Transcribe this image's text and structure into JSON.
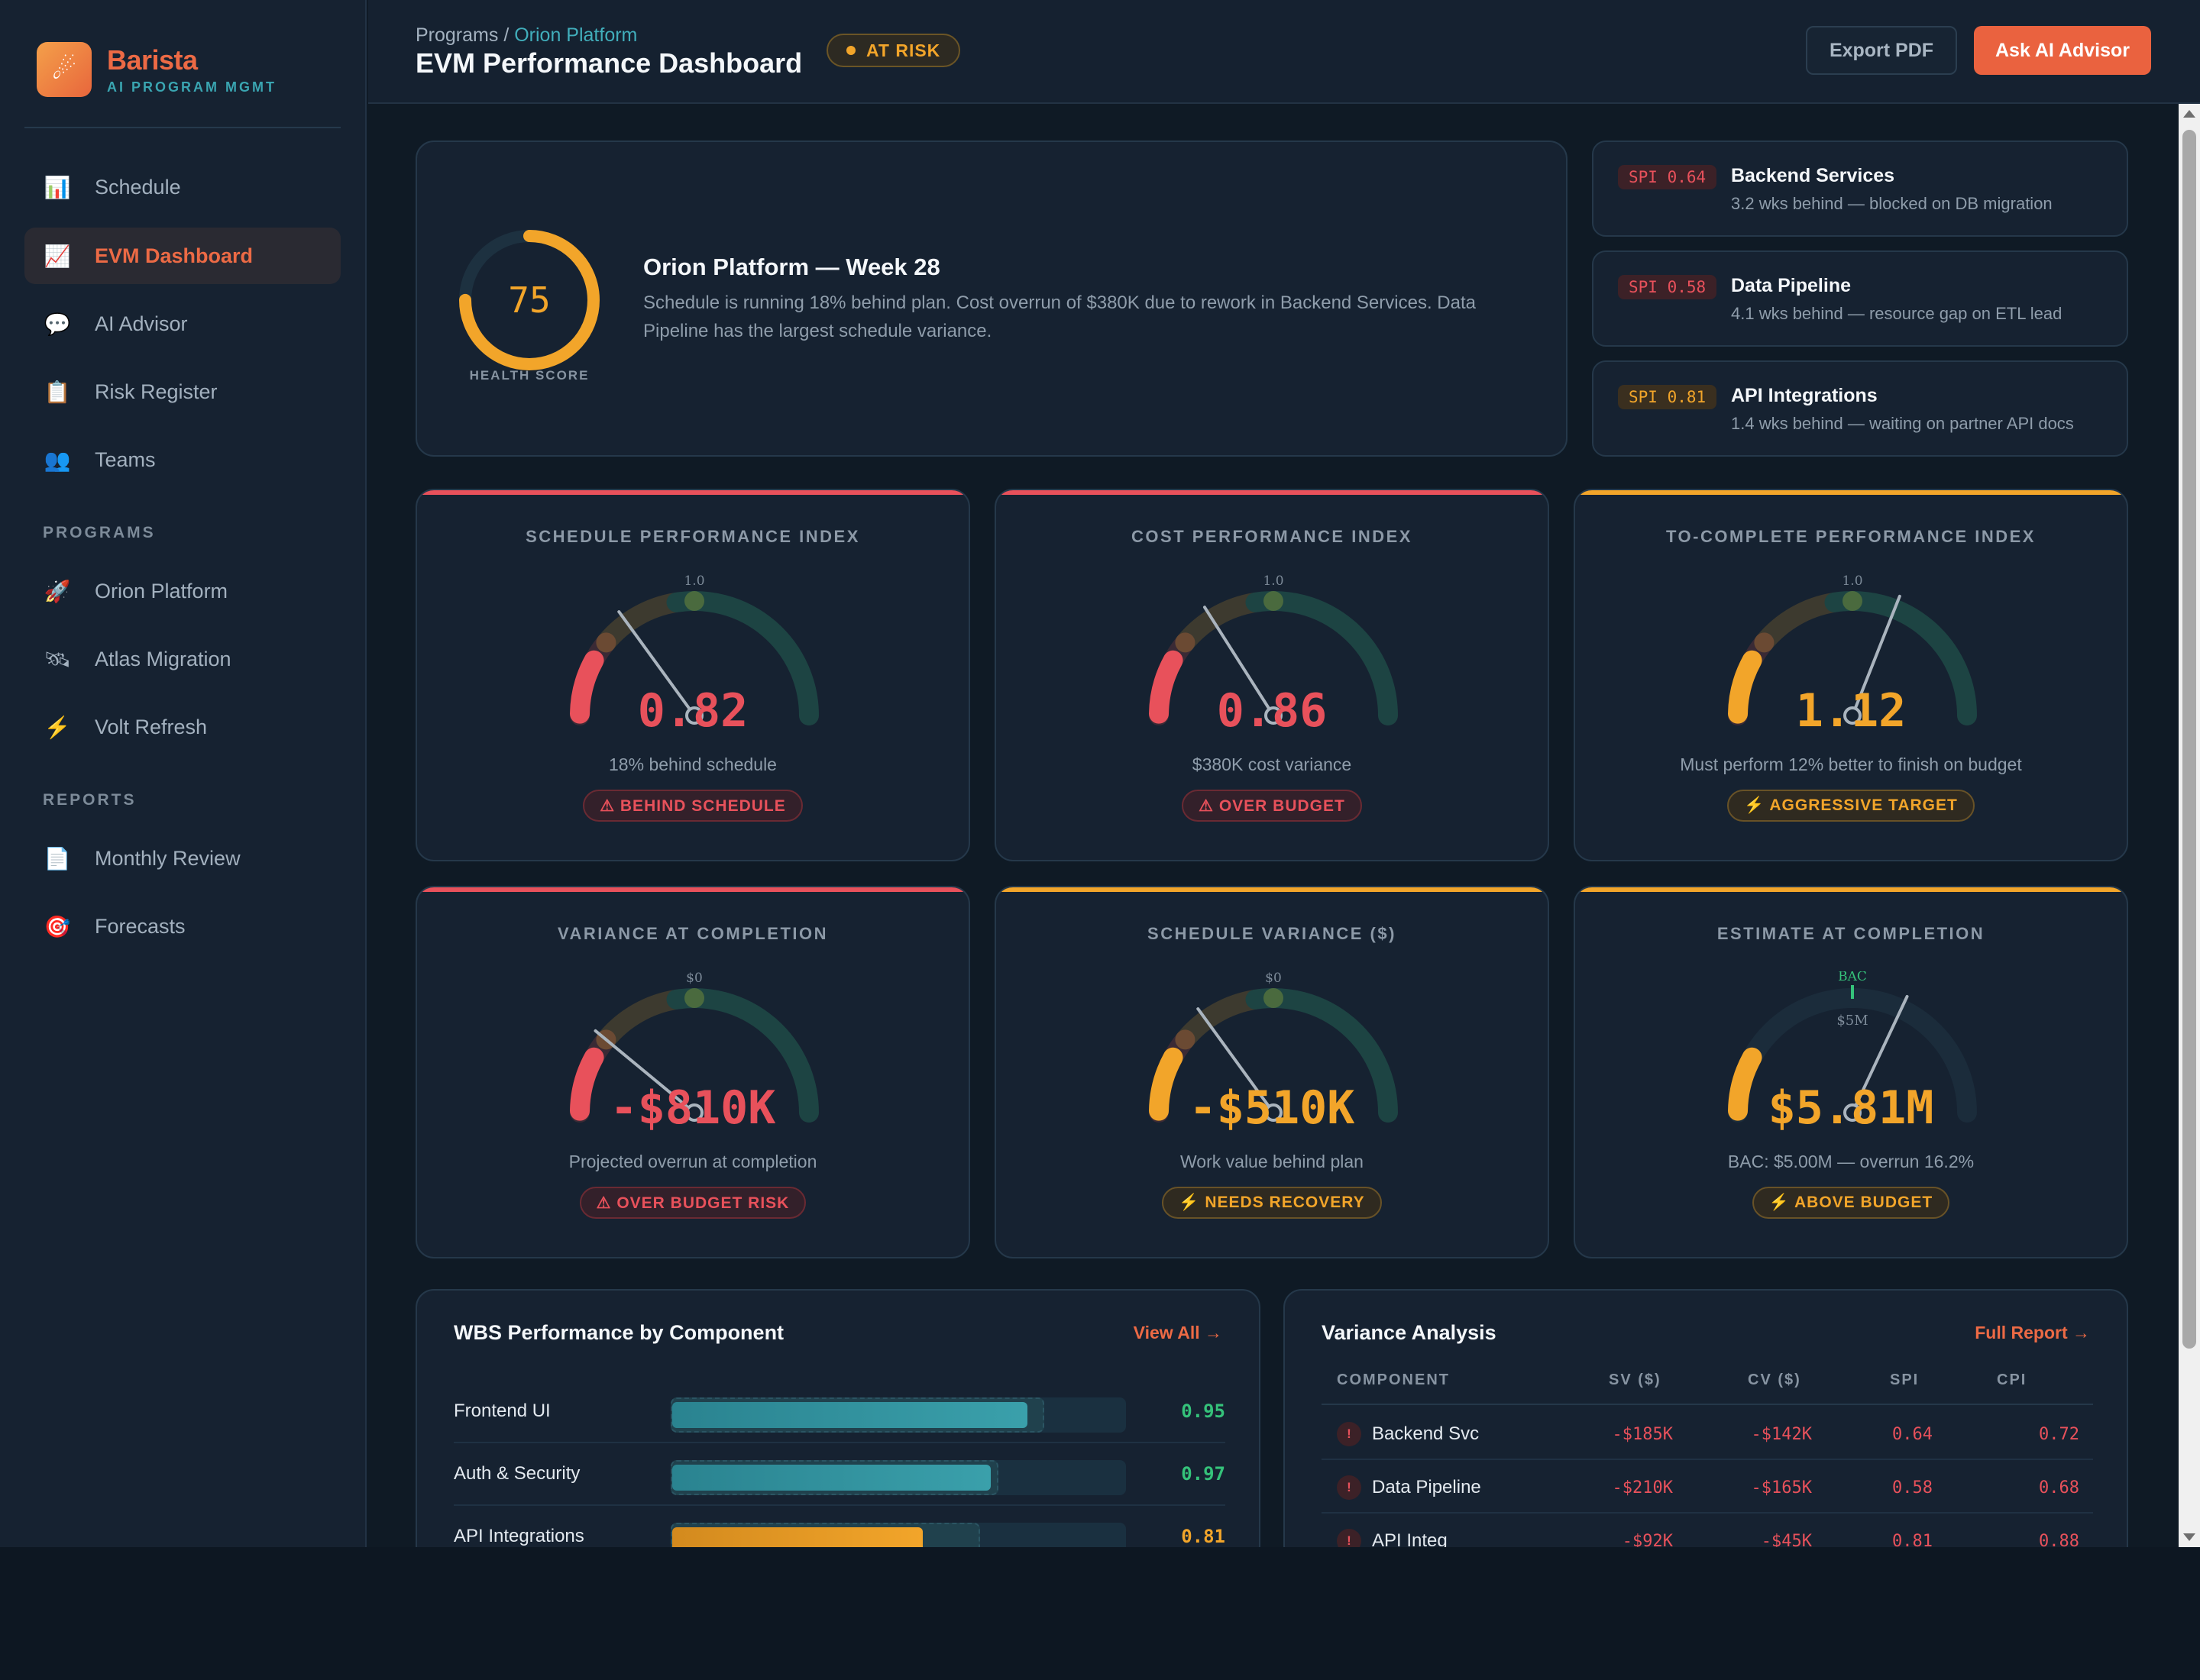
{
  "brand": {
    "name": "Barista",
    "tagline": "AI PROGRAM MGMT",
    "logo_icon": "comet-icon"
  },
  "sidebar": {
    "items": [
      {
        "label": "Schedule",
        "icon": "📊",
        "icon_name": "bar-chart-icon",
        "active": false
      },
      {
        "label": "EVM Dashboard",
        "icon": "📈",
        "icon_name": "trend-chart-icon",
        "active": true
      },
      {
        "label": "AI Advisor",
        "icon": "💬",
        "icon_name": "chat-bubble-icon",
        "active": false
      },
      {
        "label": "Risk Register",
        "icon": "📋",
        "icon_name": "clipboard-icon",
        "active": false
      },
      {
        "label": "Teams",
        "icon": "👥",
        "icon_name": "people-icon",
        "active": false
      }
    ],
    "programs_heading": "PROGRAMS",
    "programs": [
      {
        "label": "Orion Platform",
        "icon": "🚀",
        "icon_name": "rocket-icon"
      },
      {
        "label": "Atlas Migration",
        "icon": "🛰",
        "icon_name": "satellite-icon"
      },
      {
        "label": "Volt Refresh",
        "icon": "⚡",
        "icon_name": "lightning-icon"
      }
    ],
    "reports_heading": "REPORTS",
    "reports": [
      {
        "label": "Monthly Review",
        "icon": "📄",
        "icon_name": "document-icon"
      },
      {
        "label": "Forecasts",
        "icon": "🎯",
        "icon_name": "target-icon"
      }
    ]
  },
  "header": {
    "breadcrumb_root": "Programs",
    "breadcrumb_sep": " / ",
    "breadcrumb_current": "Orion Platform",
    "title": "EVM Performance Dashboard",
    "status": "AT RISK",
    "export_label": "Export PDF",
    "ask_label": "Ask AI Advisor"
  },
  "health": {
    "score": "75",
    "score_fraction": 0.75,
    "label": "HEALTH SCORE",
    "title": "Orion Platform — Week 28",
    "description": "Schedule is running 18% behind plan. Cost overrun of $380K due to rework in Backend Services. Data Pipeline has the largest schedule variance."
  },
  "alerts": [
    {
      "spi": "SPI 0.64",
      "severity": "red",
      "title": "Backend Services",
      "desc": "3.2 wks behind — blocked on DB migration"
    },
    {
      "spi": "SPI 0.58",
      "severity": "red",
      "title": "Data Pipeline",
      "desc": "4.1 wks behind — resource gap on ETL lead"
    },
    {
      "spi": "SPI 0.81",
      "severity": "amber",
      "title": "API Integrations",
      "desc": "1.4 wks behind — waiting on partner API docs"
    }
  ],
  "kpis": [
    {
      "title": "SCHEDULE PERFORMANCE INDEX",
      "value": "0.82",
      "sub": "18% behind schedule",
      "badge": "⚠ BEHIND SCHEDULE",
      "tone": "red",
      "ref_label": "1.0",
      "fraction": 0.3
    },
    {
      "title": "COST PERFORMANCE INDEX",
      "value": "0.86",
      "sub": "$380K cost variance",
      "badge": "⚠ OVER BUDGET",
      "tone": "red",
      "ref_label": "1.0",
      "fraction": 0.32
    },
    {
      "title": "TO-COMPLETE PERFORMANCE INDEX",
      "value": "1.12",
      "sub": "Must perform 12% better to finish on budget",
      "badge": "⚡ AGGRESSIVE TARGET",
      "tone": "amber",
      "ref_label": "1.0",
      "fraction": 0.62
    },
    {
      "title": "VARIANCE AT COMPLETION",
      "value": "-$810K",
      "sub": "Projected overrun at completion",
      "badge": "⚠ OVER BUDGET RISK",
      "tone": "red",
      "ref_label": "$0",
      "fraction": 0.22
    },
    {
      "title": "SCHEDULE VARIANCE ($)",
      "value": "-$510K",
      "sub": "Work value behind plan",
      "badge": "⚡ NEEDS RECOVERY",
      "tone": "amber",
      "ref_label": "$0",
      "fraction": 0.3
    },
    {
      "title": "ESTIMATE AT COMPLETION",
      "value": "$5.81M",
      "sub": "BAC: $5.00M — overrun 16.2%",
      "badge": "⚡ ABOVE BUDGET",
      "tone": "amber",
      "ref_label": "BAC",
      "ref_sub": "$5M",
      "fraction": 0.64
    }
  ],
  "wbs": {
    "title": "WBS Performance by Component",
    "link": "View All →",
    "rows": [
      {
        "name": "Frontend UI",
        "value": "0.95",
        "progress": 0.78,
        "plan": 0.82,
        "tone": "teal"
      },
      {
        "name": "Auth & Security",
        "value": "0.97",
        "progress": 0.7,
        "plan": 0.72,
        "tone": "teal"
      },
      {
        "name": "API Integrations",
        "value": "0.81",
        "progress": 0.55,
        "plan": 0.68,
        "tone": "amber"
      }
    ]
  },
  "variance": {
    "title": "Variance Analysis",
    "link": "Full Report →",
    "headers": [
      "COMPONENT",
      "SV ($)",
      "CV ($)",
      "SPI",
      "CPI"
    ],
    "rows": [
      {
        "component": "Backend Svc",
        "sv": "-$185K",
        "cv": "-$142K",
        "spi": "0.64",
        "cpi": "0.72"
      },
      {
        "component": "Data Pipeline",
        "sv": "-$210K",
        "cv": "-$165K",
        "spi": "0.58",
        "cpi": "0.68"
      },
      {
        "component": "API Integ",
        "sv": "-$92K",
        "cv": "-$45K",
        "spi": "0.81",
        "cpi": "0.88"
      }
    ]
  },
  "colors": {
    "accent": "#ea623f",
    "red": "#e8515b",
    "amber": "#f2a52a",
    "teal": "#2e8f9a",
    "green": "#35c27a"
  }
}
